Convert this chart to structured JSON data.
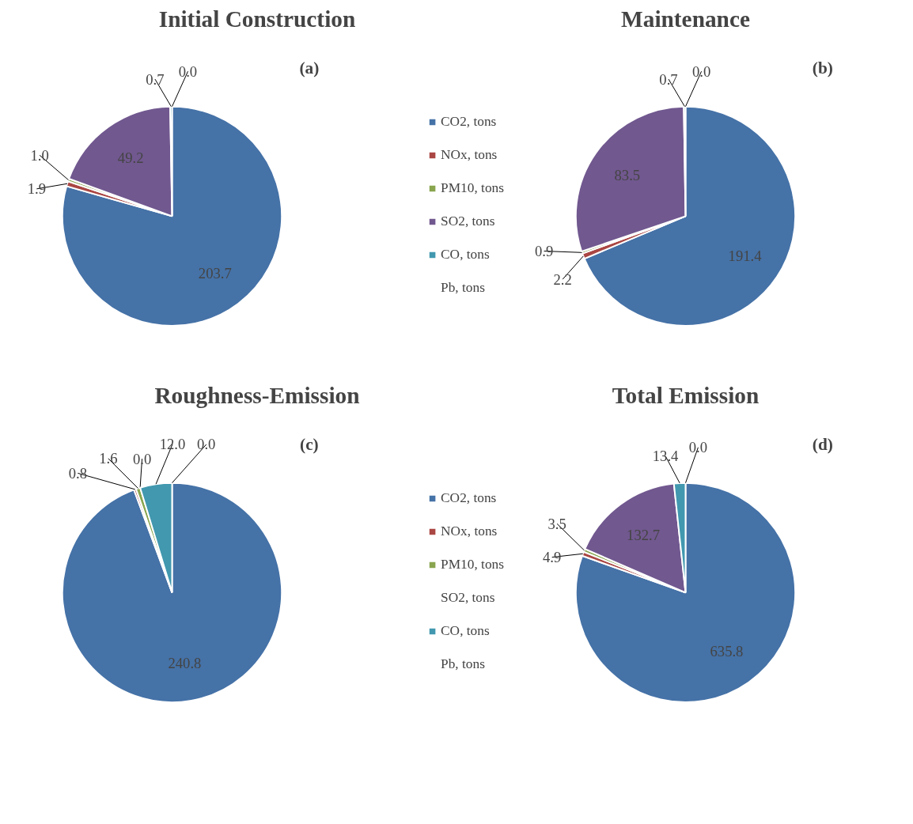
{
  "chart_data": [
    {
      "type": "pie",
      "title": "Initial Construction",
      "categories": [
        "CO2, tons",
        "NOx, tons",
        "PM10, tons",
        "SO2, tons",
        "CO, tons",
        "Pb, tons"
      ],
      "values": [
        203.7,
        1.9,
        1.0,
        49.2,
        0.7,
        0.0
      ],
      "value_labels": [
        "203.7",
        "1.9",
        "1.0",
        "49.2",
        "0.7",
        "0.0"
      ],
      "colors": [
        "#4572a7",
        "#aa4643",
        "#89a54e",
        "#71588f",
        "#4198af",
        "#db843d"
      ],
      "data_labels": true,
      "legend": "right",
      "annotations": [
        "(a)"
      ]
    },
    {
      "type": "pie",
      "title": "Maintenance",
      "categories": [
        null,
        null,
        null,
        null,
        null,
        null
      ],
      "values": [
        191.4,
        2.2,
        0.9,
        83.5,
        0.7,
        0.0
      ],
      "value_labels": [
        "191.4",
        "2.2",
        "0.9",
        "83.5",
        "0.7",
        "0.0"
      ],
      "colors": [
        "#4572a7",
        "#aa4643",
        "#89a54e",
        "#71588f",
        "#4198af",
        "#db843d"
      ],
      "data_labels": true,
      "annotations": [
        "(b)"
      ]
    },
    {
      "type": "pie",
      "title": "Roughness-Emission",
      "categories": [
        "CO2, tons",
        "NOx, tons",
        "PM10, tons",
        "SO2, tons",
        "CO, tons",
        "Pb, tons"
      ],
      "values": [
        240.8,
        0.8,
        1.6,
        0.0,
        12.0,
        0.0
      ],
      "value_labels": [
        "240.8",
        "0.8",
        "1.6",
        "0.0",
        "12.0",
        "0.0"
      ],
      "colors": [
        "#4572a7",
        "#aa4643",
        "#89a54e",
        "#71588f",
        "#4198af",
        "#db843d"
      ],
      "data_labels": true,
      "legend": "right",
      "annotations": [
        "(c)"
      ]
    },
    {
      "type": "pie",
      "title": "Total Emission",
      "categories": [
        null,
        null,
        null,
        null,
        null,
        null
      ],
      "values": [
        635.8,
        4.9,
        3.5,
        132.7,
        13.4,
        0.0
      ],
      "value_labels": [
        "635.8",
        "4.9",
        "3.5",
        "132.7",
        "13.4",
        "0.0"
      ],
      "colors": [
        "#4572a7",
        "#aa4643",
        "#89a54e",
        "#71588f",
        "#4198af",
        "#db843d"
      ],
      "data_labels": true,
      "annotations": [
        "(d)"
      ]
    }
  ]
}
